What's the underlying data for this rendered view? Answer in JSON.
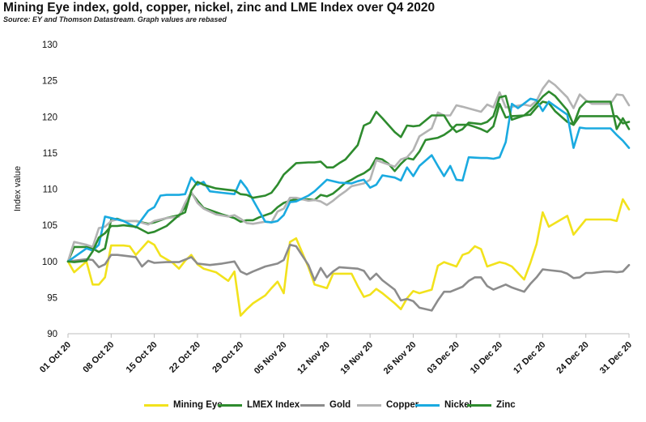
{
  "title": "Mining Eye index, gold, copper, nickel, zinc and LME Index over Q4 2020",
  "subtitle": "Source: EY and Thomson Datastream.  Graph values are rebased",
  "chart_data": {
    "type": "line",
    "title": "Mining Eye index, gold, copper, nickel, zinc and LME Index over Q4 2020",
    "xlabel": "",
    "ylabel": "Index value",
    "ylim": [
      90,
      130
    ],
    "yticks": [
      90,
      95,
      100,
      105,
      110,
      115,
      120,
      125,
      130
    ],
    "xlim": [
      0,
      91
    ],
    "xtick_labels": [
      "01 Oct 20",
      "08 Oct 20",
      "15 Oct 20",
      "22 Oct 20",
      "29 Oct 20",
      "05 Nov 20",
      "12 Nov 20",
      "19 Nov 20",
      "26 Nov 20",
      "03 Dec 20",
      "10 Dec 20",
      "17 Dec 20",
      "24 Dec 20",
      "31 Dec 20"
    ],
    "xtick_positions": [
      0,
      7,
      14,
      21,
      28,
      35,
      42,
      49,
      56,
      63,
      70,
      77,
      84,
      91
    ],
    "grid": false,
    "legend_position": "bottom",
    "series": [
      {
        "name": "Mining Eye",
        "color": "#f2e21c",
        "x": [
          0,
          1,
          3,
          4,
          5,
          6,
          7,
          8,
          9,
          10,
          11,
          13,
          14,
          15,
          16,
          17,
          18,
          19,
          20,
          21,
          22,
          24,
          26,
          27,
          28,
          29,
          30,
          32,
          33,
          34,
          35,
          36,
          37,
          39,
          40,
          42,
          43,
          44,
          45,
          46,
          47,
          48,
          49,
          50,
          51,
          53,
          54,
          55,
          56,
          57,
          59,
          60,
          61,
          63,
          64,
          65,
          66,
          67,
          68,
          70,
          71,
          72,
          74,
          75,
          76,
          77,
          78,
          81,
          82,
          84,
          85,
          87,
          88,
          89,
          90,
          91
        ],
        "values": [
          100,
          98.5,
          100,
          96.8,
          96.8,
          97.8,
          102.2,
          102.2,
          102.2,
          102.1,
          100.9,
          102.8,
          102.3,
          100.8,
          100.3,
          99.8,
          99,
          100.1,
          100.9,
          99.6,
          99,
          98.5,
          97.3,
          98.6,
          92.5,
          93.4,
          94.2,
          95.3,
          96.3,
          97.2,
          95.6,
          102.7,
          103.2,
          99.2,
          96.8,
          96.3,
          98.3,
          98.3,
          98.3,
          98.3,
          96.6,
          95.1,
          95.4,
          96.2,
          95.6,
          94.2,
          93.4,
          94.9,
          95.9,
          95.6,
          96.1,
          99.4,
          99.9,
          99.3,
          100.9,
          101.2,
          102.1,
          101.7,
          99.3,
          99.9,
          99.7,
          99.3,
          97.5,
          99.8,
          102.4,
          106.8,
          104.8,
          106.3,
          103.7,
          105.8,
          105.8,
          105.8,
          105.8,
          105.6,
          108.6,
          107.2
        ]
      },
      {
        "name": "LMEX Index",
        "color": "#2e8b2e",
        "x": [
          0,
          1,
          3,
          4,
          5,
          6,
          7,
          8,
          9,
          11,
          13,
          14,
          16,
          18,
          19,
          20,
          21,
          22,
          23,
          25,
          27,
          28,
          29,
          30,
          31,
          33,
          34,
          35,
          36,
          37,
          39,
          40,
          41,
          42,
          43,
          44,
          45,
          46,
          47,
          48,
          49,
          50,
          51,
          52,
          53,
          54,
          55,
          56,
          57,
          58,
          60,
          61,
          62,
          63,
          65,
          66,
          67,
          68,
          69,
          70,
          71,
          72,
          74,
          75,
          76,
          77,
          78,
          79,
          81,
          82,
          83,
          84,
          85,
          87,
          88,
          89,
          90,
          91
        ],
        "values": [
          100,
          102,
          102,
          101.8,
          101.3,
          101.8,
          105.8,
          105.9,
          105.6,
          105.6,
          105.2,
          105.4,
          106,
          106.4,
          107.5,
          109.5,
          108.4,
          107.4,
          107.1,
          106.5,
          106,
          105.5,
          105.7,
          105.7,
          106.1,
          106.7,
          107.5,
          108.1,
          108.4,
          108.6,
          108.6,
          108.5,
          109.2,
          109,
          109.4,
          110.1,
          110.9,
          111.3,
          111.8,
          112.2,
          112.8,
          114.3,
          114.1,
          113.5,
          112.5,
          113.5,
          114.3,
          114.1,
          115.2,
          116.8,
          117.1,
          117.5,
          118.1,
          118.9,
          118.9,
          118.6,
          118.3,
          117.9,
          118.7,
          121.8,
          119.9,
          120.1,
          120.2,
          120.3,
          121.3,
          122.1,
          121.9,
          120.8,
          119.3,
          118.9,
          120.1,
          120.1,
          120.1,
          120.1,
          120.1,
          120.1,
          119.1,
          119.3
        ]
      },
      {
        "name": "Gold",
        "color": "#8c8c8c",
        "x": [
          0,
          3,
          4,
          5,
          6,
          7,
          8,
          9,
          11,
          12,
          13,
          14,
          16,
          17,
          18,
          20,
          21,
          23,
          25,
          27,
          28,
          29,
          30,
          32,
          34,
          35,
          36,
          37,
          39,
          40,
          41,
          42,
          43,
          44,
          47,
          48,
          49,
          50,
          51,
          53,
          54,
          55,
          56,
          57,
          59,
          60,
          61,
          62,
          64,
          65,
          66,
          67,
          68,
          69,
          71,
          72,
          74,
          75,
          76,
          77,
          78,
          80,
          81,
          82,
          83,
          84,
          85,
          87,
          88,
          89,
          90,
          91
        ],
        "values": [
          100,
          100.3,
          100.2,
          99.2,
          99.6,
          100.9,
          100.9,
          100.8,
          100.6,
          99.3,
          100.1,
          99.8,
          99.9,
          99.9,
          99.9,
          100.6,
          99.7,
          99.5,
          99.7,
          100,
          98.6,
          98.2,
          98.6,
          99.3,
          99.7,
          100.2,
          102.3,
          102.1,
          99.5,
          97.4,
          99.1,
          97.8,
          98.6,
          99.2,
          99,
          98.7,
          97.5,
          98.3,
          97.4,
          96.1,
          94.6,
          94.8,
          94.5,
          93.6,
          93.2,
          94.6,
          95.8,
          95.8,
          96.5,
          97.3,
          97.8,
          97.8,
          96.6,
          96.1,
          96.8,
          96.4,
          95.8,
          96.9,
          97.8,
          98.9,
          98.8,
          98.6,
          98.3,
          97.7,
          97.8,
          98.4,
          98.4,
          98.6,
          98.6,
          98.5,
          98.6,
          99.5
        ]
      },
      {
        "name": "Copper",
        "color": "#b3b3b3",
        "x": [
          0,
          1,
          3,
          4,
          5,
          6,
          7,
          8,
          9,
          11,
          13,
          14,
          16,
          18,
          19,
          20,
          21,
          22,
          24,
          26,
          27,
          28,
          29,
          30,
          32,
          33,
          34,
          35,
          36,
          37,
          39,
          40,
          41,
          42,
          43,
          44,
          45,
          46,
          47,
          48,
          49,
          50,
          51,
          53,
          54,
          55,
          56,
          57,
          59,
          60,
          61,
          62,
          63,
          64,
          67,
          68,
          69,
          70,
          71,
          72,
          74,
          75,
          76,
          77,
          78,
          79,
          81,
          82,
          83,
          84,
          85,
          87,
          88,
          89,
          90,
          91
        ],
        "values": [
          100,
          102.7,
          102.3,
          102,
          104.6,
          104.8,
          105.6,
          105.8,
          105.6,
          105.6,
          105.1,
          105.6,
          106,
          106.2,
          108.1,
          109.6,
          108.1,
          107.3,
          106.5,
          106.2,
          106.4,
          105.9,
          105.3,
          105.2,
          105.5,
          105.4,
          106.9,
          107.3,
          108.8,
          108.8,
          108.4,
          108.5,
          108.3,
          107.8,
          108.4,
          109.1,
          109.7,
          110.4,
          110.6,
          110.8,
          111.3,
          114,
          113.7,
          113.1,
          114.1,
          114.4,
          115.4,
          117.3,
          118.4,
          120.6,
          120.2,
          120.2,
          121.6,
          121.4,
          120.7,
          121.7,
          121.3,
          123.4,
          121.3,
          121.4,
          121.7,
          121.5,
          122.2,
          123.9,
          125,
          124.4,
          122.7,
          121.2,
          123.1,
          122.3,
          121.8,
          121.8,
          121.8,
          123.1,
          123,
          121.6
        ]
      },
      {
        "name": "Nickel",
        "color": "#1aaae0",
        "x": [
          0,
          3,
          4,
          5,
          6,
          7,
          8,
          9,
          11,
          13,
          14,
          15,
          16,
          17,
          18,
          19,
          20,
          21,
          22,
          23,
          25,
          27,
          28,
          29,
          30,
          32,
          33,
          34,
          35,
          36,
          37,
          39,
          40,
          42,
          44,
          46,
          47,
          48,
          49,
          50,
          51,
          53,
          54,
          55,
          56,
          57,
          59,
          60,
          61,
          62,
          63,
          64,
          65,
          67,
          68,
          69,
          70,
          71,
          72,
          73,
          75,
          76,
          77,
          78,
          79,
          81,
          82,
          83,
          84,
          85,
          87,
          88,
          89,
          90,
          91
        ],
        "values": [
          100,
          101.8,
          101.5,
          102.3,
          106.2,
          106,
          105.8,
          105.6,
          104.7,
          107,
          107.5,
          109.1,
          109.2,
          109.2,
          109.2,
          109.3,
          111.6,
          110.6,
          111,
          109.7,
          109.5,
          109.3,
          111.2,
          110.1,
          108.5,
          105.5,
          105.4,
          105.6,
          106.4,
          108.2,
          108.3,
          109.1,
          109.7,
          111.3,
          110.9,
          110.8,
          111.1,
          111.3,
          110.2,
          110.6,
          111.9,
          111.6,
          111.2,
          113,
          111.8,
          113.2,
          114.7,
          113.2,
          111.8,
          113.2,
          111.3,
          111.2,
          114.4,
          114.3,
          114.3,
          114.2,
          114.4,
          116.5,
          121.8,
          121.2,
          122.5,
          122.3,
          120.8,
          122.1,
          121.5,
          120.3,
          115.7,
          118.5,
          118.4,
          118.4,
          118.4,
          118.4,
          117.5,
          116.7,
          115.7
        ]
      },
      {
        "name": "Zinc",
        "color": "#2e8b2e",
        "x": [
          0,
          1,
          3,
          4,
          5,
          6,
          7,
          8,
          9,
          11,
          13,
          14,
          16,
          18,
          19,
          20,
          21,
          22,
          24,
          26,
          27,
          28,
          29,
          30,
          32,
          33,
          34,
          35,
          36,
          37,
          39,
          40,
          41,
          42,
          43,
          44,
          45,
          46,
          47,
          48,
          49,
          50,
          51,
          53,
          54,
          55,
          56,
          57,
          59,
          60,
          61,
          62,
          63,
          64,
          65,
          67,
          68,
          69,
          70,
          71,
          72,
          74,
          75,
          76,
          77,
          78,
          79,
          81,
          82,
          83,
          84,
          85,
          87,
          88,
          89,
          90,
          91
        ],
        "values": [
          100,
          99.9,
          100.1,
          101.4,
          103.3,
          103.9,
          104.9,
          104.9,
          105,
          104.8,
          103.9,
          104.1,
          104.9,
          106.4,
          106.8,
          109.8,
          111,
          110.6,
          110.1,
          109.9,
          109.8,
          109.3,
          109.2,
          108.8,
          109.1,
          109.5,
          110.6,
          112,
          112.8,
          113.6,
          113.7,
          113.7,
          113.8,
          113,
          113,
          113.6,
          114.1,
          115.1,
          116.1,
          118.8,
          119.2,
          120.7,
          119.8,
          117.9,
          117.2,
          118.8,
          118.7,
          118.8,
          120.2,
          120.2,
          120.2,
          118.8,
          117.9,
          118.3,
          119.2,
          119,
          119.3,
          120.1,
          122.7,
          122.9,
          119.6,
          120.2,
          120.9,
          121.8,
          122.8,
          123.5,
          122.9,
          120.9,
          118.9,
          121.2,
          122.1,
          122.1,
          122.1,
          122.1,
          118.3,
          119.8,
          118.3
        ]
      }
    ]
  }
}
